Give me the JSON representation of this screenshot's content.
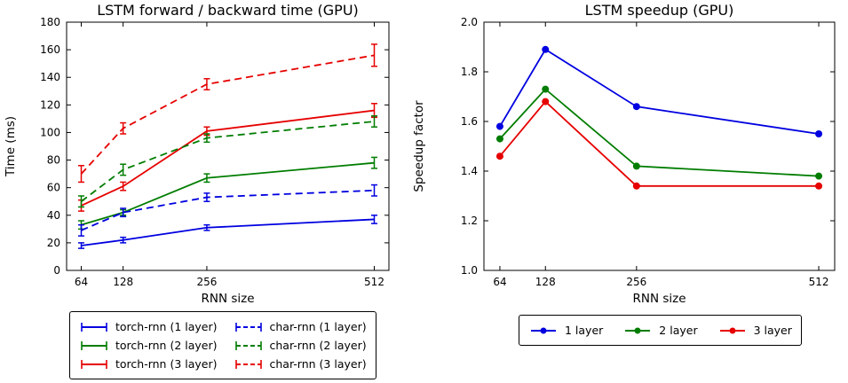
{
  "figure": {
    "background": "#ffffff"
  },
  "chart_data": [
    {
      "type": "line",
      "title": "LSTM forward / backward time (GPU)",
      "xlabel": "RNN size",
      "ylabel": "Time (ms)",
      "x": [
        64,
        128,
        256,
        512
      ],
      "xticks": [
        64,
        128,
        256,
        512
      ],
      "xlim": [
        41.6,
        534.4
      ],
      "ylim": [
        0,
        180
      ],
      "yticks": [
        0,
        20,
        40,
        60,
        80,
        100,
        120,
        140,
        160,
        180
      ],
      "yticklabels": [
        "0",
        "20",
        "40",
        "60",
        "80",
        "100",
        "120",
        "140",
        "160",
        "180"
      ],
      "grid": false,
      "legend_position": "below-two-columns",
      "series": [
        {
          "name": "torch-rnn (1 layer)",
          "color": "#0000e0",
          "style": "solid",
          "values": [
            18,
            22,
            31,
            37
          ],
          "yerr": [
            2,
            2,
            2,
            3
          ]
        },
        {
          "name": "torch-rnn (2 layer)",
          "color": "#007d00",
          "style": "solid",
          "values": [
            33,
            42,
            67,
            78
          ],
          "yerr": [
            3,
            2,
            3,
            4
          ]
        },
        {
          "name": "torch-rnn (3 layer)",
          "color": "#e60000",
          "style": "solid",
          "values": [
            47,
            61,
            101,
            116
          ],
          "yerr": [
            4,
            3,
            3,
            5
          ]
        },
        {
          "name": "char-rnn (1 layer)",
          "color": "#0000e0",
          "style": "dashed",
          "values": [
            29,
            42,
            53,
            58
          ],
          "yerr": [
            4,
            3,
            3,
            4
          ]
        },
        {
          "name": "char-rnn (2 layer)",
          "color": "#007d00",
          "style": "dashed",
          "values": [
            50,
            73,
            96,
            108
          ],
          "yerr": [
            4,
            4,
            3,
            4
          ]
        },
        {
          "name": "char-rnn (3 layer)",
          "color": "#e60000",
          "style": "dashed",
          "values": [
            70,
            103,
            135,
            156
          ],
          "yerr": [
            6,
            4,
            4,
            8
          ]
        }
      ]
    },
    {
      "type": "line",
      "title": "LSTM speedup (GPU)",
      "xlabel": "RNN size",
      "ylabel": "Speedup factor",
      "x": [
        64,
        128,
        256,
        512
      ],
      "xticks": [
        64,
        128,
        256,
        512
      ],
      "xlim": [
        41.6,
        534.4
      ],
      "ylim": [
        1.0,
        2.0
      ],
      "yticks": [
        1.0,
        1.2,
        1.4,
        1.6,
        1.8,
        2.0
      ],
      "yticklabels": [
        "1.0",
        "1.2",
        "1.4",
        "1.6",
        "1.8",
        "2.0"
      ],
      "grid": false,
      "legend_position": "below-one-row",
      "series": [
        {
          "name": "1 layer",
          "color": "#0000e0",
          "style": "solid",
          "marker": "circle",
          "values": [
            1.58,
            1.89,
            1.66,
            1.55
          ]
        },
        {
          "name": "2 layer",
          "color": "#007d00",
          "style": "solid",
          "marker": "circle",
          "values": [
            1.53,
            1.73,
            1.42,
            1.38
          ]
        },
        {
          "name": "3 layer",
          "color": "#e60000",
          "style": "solid",
          "marker": "circle",
          "values": [
            1.46,
            1.68,
            1.34,
            1.34
          ]
        }
      ]
    }
  ]
}
